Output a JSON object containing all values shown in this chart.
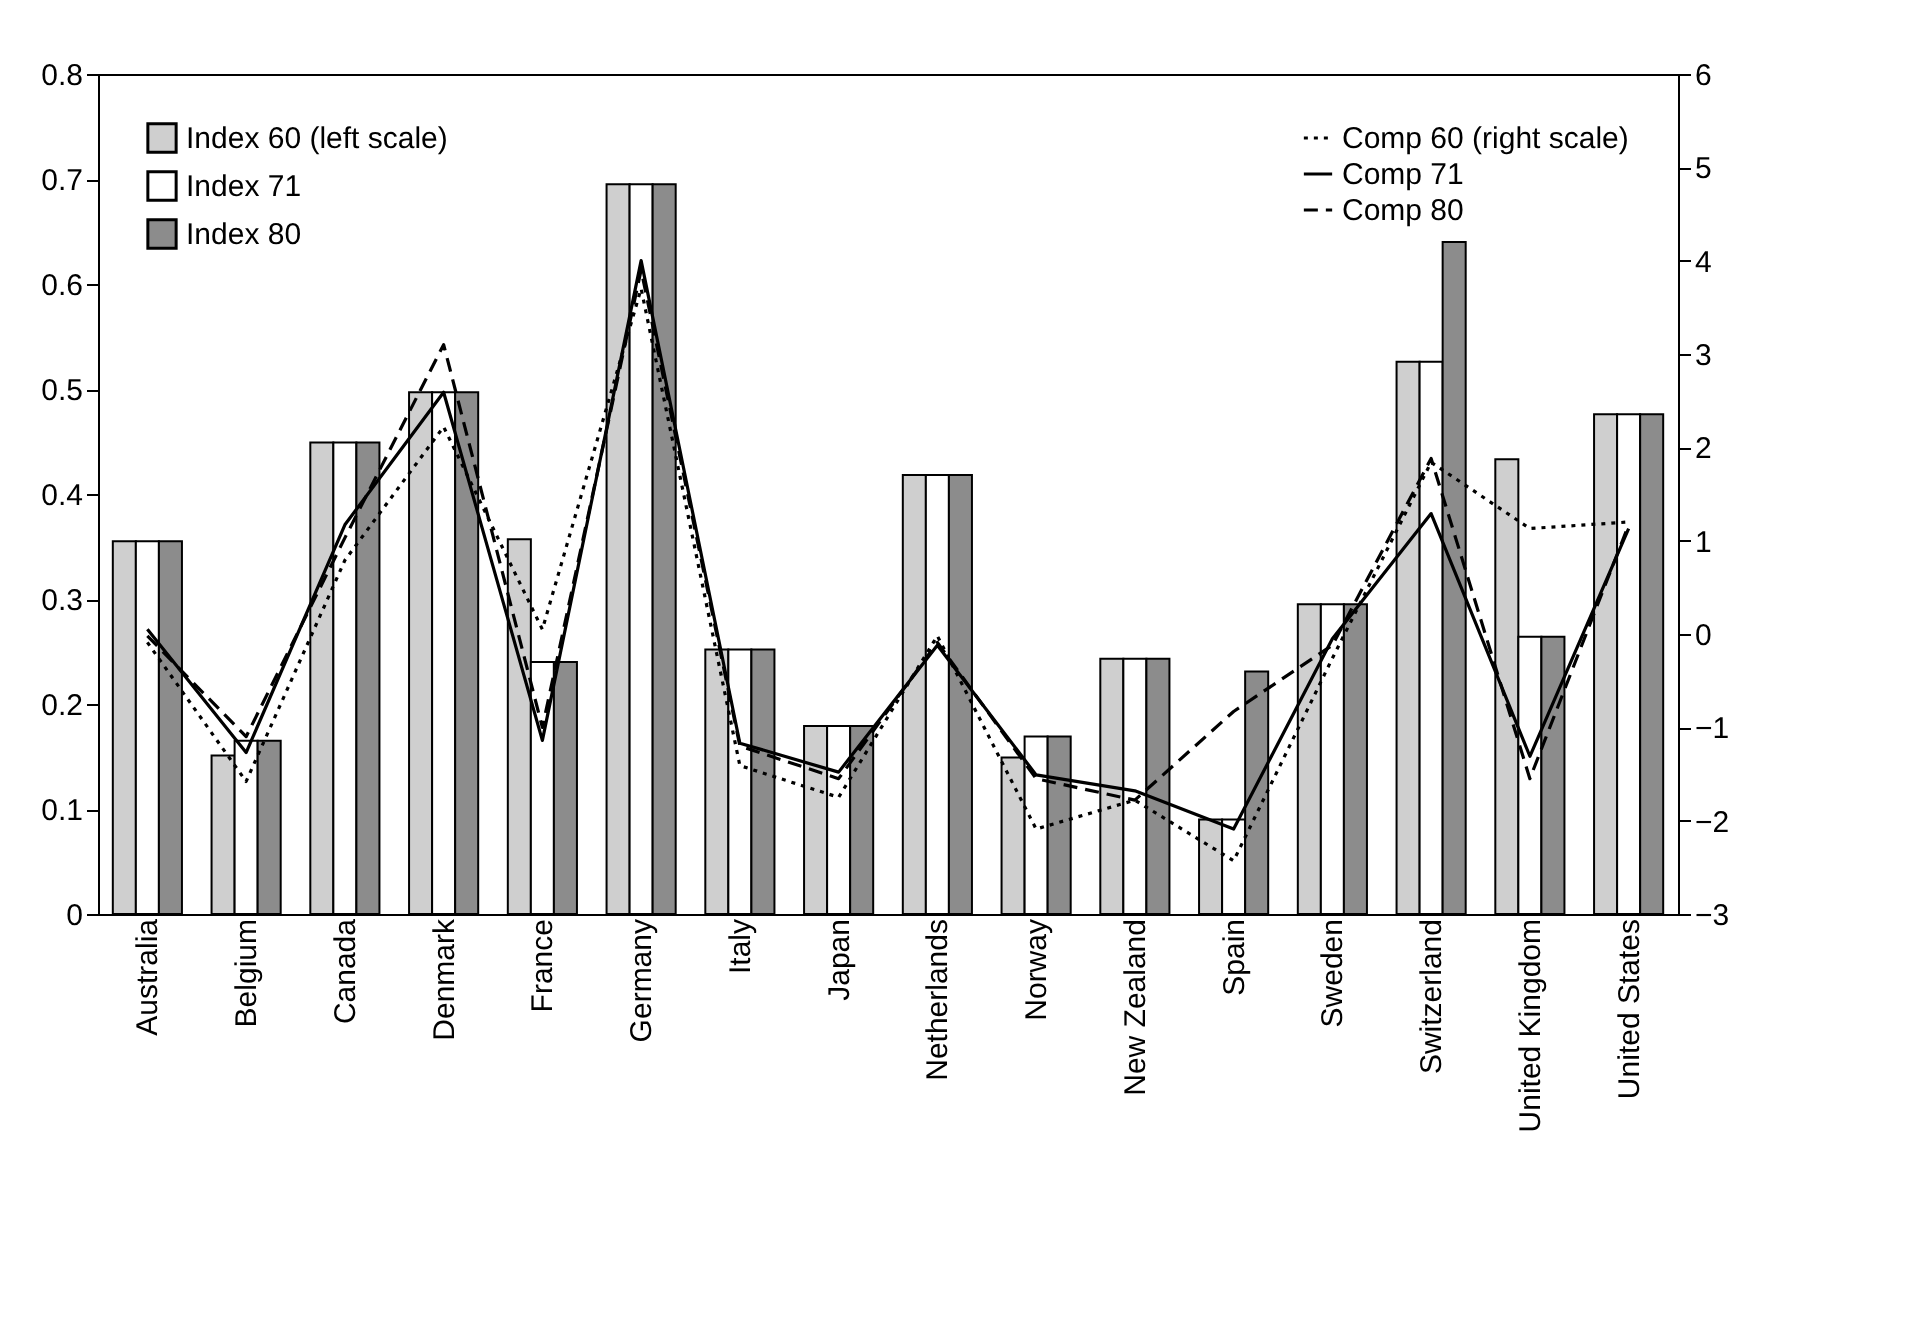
{
  "chart_data": {
    "type": "bar",
    "categories": [
      "Australia",
      "Belgium",
      "Canada",
      "Denmark",
      "France",
      "Germany",
      "Italy",
      "Japan",
      "Netherlands",
      "Norway",
      "New Zealand",
      "Spain",
      "Sweden",
      "Switzerland",
      "United Kingdom",
      "United States"
    ],
    "series": [
      {
        "name": "Index 60 (left scale)",
        "color": "#cfcfcf",
        "values": [
          0.355,
          0.151,
          0.449,
          0.497,
          0.357,
          0.695,
          0.252,
          0.179,
          0.418,
          0.149,
          0.243,
          0.09,
          0.295,
          0.526,
          0.433,
          0.476
        ]
      },
      {
        "name": "Index 71",
        "color": "#ffffff",
        "values": [
          0.355,
          0.165,
          0.449,
          0.497,
          0.24,
          0.695,
          0.252,
          0.179,
          0.418,
          0.169,
          0.243,
          0.09,
          0.295,
          0.526,
          0.264,
          0.476
        ]
      },
      {
        "name": "Index 80",
        "color": "#8c8c8c",
        "values": [
          0.355,
          0.165,
          0.449,
          0.497,
          0.24,
          0.695,
          0.252,
          0.179,
          0.418,
          0.169,
          0.243,
          0.231,
          0.295,
          0.64,
          0.264,
          0.476
        ]
      },
      {
        "name": "Comp 60 (right scale)",
        "type": "line",
        "axis": "y2",
        "line_style": "dotted",
        "color": "#000000",
        "values": [
          -0.09,
          -1.58,
          0.79,
          2.22,
          0.05,
          3.7,
          -1.41,
          -1.75,
          -0.02,
          -2.09,
          -1.78,
          -2.43,
          -0.26,
          1.84,
          1.13,
          1.2
        ]
      },
      {
        "name": "Comp 71",
        "type": "line",
        "axis": "y2",
        "line_style": "solid",
        "color": "#000000",
        "values": [
          0.05,
          -1.27,
          1.17,
          2.59,
          -1.14,
          4.0,
          -1.17,
          -1.48,
          -0.12,
          -1.51,
          -1.68,
          -2.09,
          -0.05,
          1.29,
          -1.31,
          1.13
        ]
      },
      {
        "name": "Comp 80",
        "type": "line",
        "axis": "y2",
        "line_style": "dashed",
        "color": "#000000",
        "values": [
          -0.02,
          -1.1,
          1.03,
          3.1,
          -1.0,
          3.9,
          -1.2,
          -1.55,
          -0.09,
          -1.55,
          -1.78,
          -0.83,
          -0.12,
          1.88,
          -1.55,
          1.17
        ]
      }
    ],
    "ylim": [
      0,
      0.8
    ],
    "yticks": [
      {
        "value": 0,
        "label": "0"
      },
      0.1,
      0.2,
      0.3,
      0.4,
      0.5,
      0.6,
      0.7,
      0.8
    ],
    "y2lim": [
      -3,
      6
    ],
    "y2ticks": [
      {
        "value": -3,
        "label": "−3"
      },
      {
        "value": -2,
        "label": "−2"
      },
      {
        "value": -1,
        "label": "−1"
      },
      0,
      1,
      2,
      3,
      4,
      5,
      6
    ],
    "legend": "top"
  }
}
